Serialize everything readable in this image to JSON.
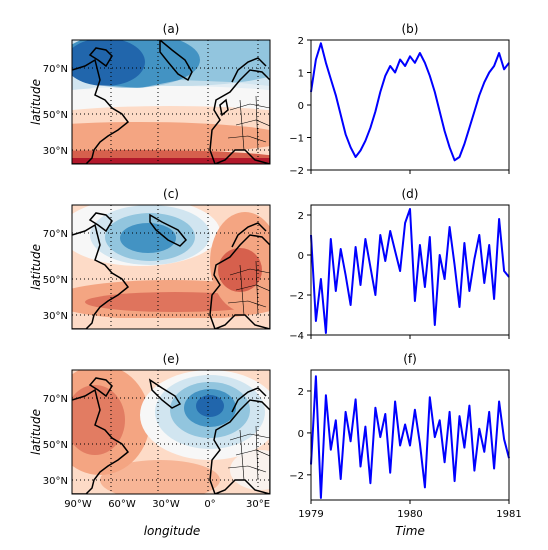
{
  "maps": [
    {
      "title": "(a)",
      "pattern": "nao_positive"
    },
    {
      "title": "(c)",
      "pattern": "east_atlantic"
    },
    {
      "title": "(e)",
      "pattern": "scandinavian_negative"
    }
  ],
  "map_axes": {
    "ylabel": "latitude",
    "xlabel": "longitude",
    "lat_ticks": [
      "70°N",
      "50°N",
      "30°N"
    ],
    "lon_ticks": [
      "90°W",
      "60°W",
      "30°W",
      "0°",
      "30°E"
    ]
  },
  "colors": {
    "series_line": "#0000ff",
    "negative_dark": "#2166ac",
    "negative_light": "#d1e5f0",
    "positive_light": "#fddbc7",
    "positive_dark": "#b2182b",
    "coast": "#000000"
  },
  "chart_data": [
    {
      "type": "line",
      "title": "(b)",
      "xlabel": "",
      "ylabel": "",
      "ylim": [
        -2,
        2
      ],
      "yticks": [
        -2,
        -1,
        0,
        1,
        2
      ],
      "xlim": [
        1979,
        1981
      ],
      "x": [
        1979.0,
        1979.05,
        1979.1,
        1979.15,
        1979.2,
        1979.25,
        1979.3,
        1979.35,
        1979.4,
        1979.45,
        1979.5,
        1979.55,
        1979.6,
        1979.65,
        1979.7,
        1979.75,
        1979.8,
        1979.85,
        1979.9,
        1979.95,
        1980.0,
        1980.05,
        1980.1,
        1980.15,
        1980.2,
        1980.25,
        1980.3,
        1980.35,
        1980.4,
        1980.45,
        1980.5,
        1980.55,
        1980.6,
        1980.65,
        1980.7,
        1980.75,
        1980.8,
        1980.85,
        1980.9,
        1980.95,
        1981.0
      ],
      "values": [
        0.4,
        1.4,
        1.9,
        1.3,
        0.8,
        0.3,
        -0.3,
        -0.9,
        -1.3,
        -1.6,
        -1.4,
        -1.1,
        -0.7,
        -0.2,
        0.4,
        0.9,
        1.2,
        1.0,
        1.4,
        1.2,
        1.5,
        1.3,
        1.6,
        1.3,
        0.9,
        0.4,
        -0.2,
        -0.8,
        -1.3,
        -1.7,
        -1.6,
        -1.2,
        -0.7,
        -0.2,
        0.3,
        0.7,
        1.0,
        1.2,
        1.6,
        1.1,
        1.3
      ]
    },
    {
      "type": "line",
      "title": "(d)",
      "xlabel": "",
      "ylabel": "",
      "ylim": [
        -4,
        2.5
      ],
      "yticks": [
        -4,
        -2,
        0,
        2
      ],
      "xlim": [
        1979,
        1981
      ],
      "x": [
        1979.0,
        1979.05,
        1979.1,
        1979.15,
        1979.2,
        1979.25,
        1979.3,
        1979.35,
        1979.4,
        1979.45,
        1979.5,
        1979.55,
        1979.6,
        1979.65,
        1979.7,
        1979.75,
        1979.8,
        1979.85,
        1979.9,
        1979.95,
        1980.0,
        1980.05,
        1980.1,
        1980.15,
        1980.2,
        1980.25,
        1980.3,
        1980.35,
        1980.4,
        1980.45,
        1980.5,
        1980.55,
        1980.6,
        1980.65,
        1980.7,
        1980.75,
        1980.8,
        1980.85,
        1980.9,
        1980.95,
        1981.0
      ],
      "values": [
        1.0,
        -3.3,
        -1.2,
        -3.9,
        0.8,
        -1.8,
        0.3,
        -1.0,
        -2.5,
        0.4,
        -1.5,
        0.8,
        -0.6,
        -2.0,
        1.0,
        -0.3,
        1.2,
        0.2,
        -0.8,
        1.6,
        2.3,
        -2.3,
        0.5,
        -1.6,
        0.9,
        -3.5,
        0.0,
        -1.2,
        1.4,
        -0.5,
        -2.6,
        0.6,
        -1.8,
        -0.2,
        1.0,
        -1.4,
        0.5,
        -2.2,
        1.8,
        -0.8,
        -1.1
      ]
    },
    {
      "type": "line",
      "title": "(f)",
      "xlabel": "Time",
      "ylabel": "",
      "ylim": [
        -3.2,
        3
      ],
      "yticks": [
        -2,
        0,
        2
      ],
      "xlim": [
        1979,
        1981
      ],
      "xticks": [
        "1979",
        "1980",
        "1981"
      ],
      "x": [
        1979.0,
        1979.05,
        1979.1,
        1979.15,
        1979.2,
        1979.25,
        1979.3,
        1979.35,
        1979.4,
        1979.45,
        1979.5,
        1979.55,
        1979.6,
        1979.65,
        1979.7,
        1979.75,
        1979.8,
        1979.85,
        1979.9,
        1979.95,
        1980.0,
        1980.05,
        1980.1,
        1980.15,
        1980.2,
        1980.25,
        1980.3,
        1980.35,
        1980.4,
        1980.45,
        1980.5,
        1980.55,
        1980.6,
        1980.65,
        1980.7,
        1980.75,
        1980.8,
        1980.85,
        1980.9,
        1980.95,
        1981.0
      ],
      "values": [
        -1.5,
        2.7,
        -3.1,
        1.8,
        -0.8,
        0.6,
        -2.2,
        1.0,
        -0.4,
        1.6,
        -1.6,
        0.3,
        -2.4,
        1.2,
        -0.2,
        0.9,
        -1.9,
        1.5,
        -0.6,
        0.4,
        -0.6,
        1.1,
        -0.5,
        -2.6,
        1.7,
        -0.2,
        0.6,
        -1.4,
        1.0,
        -2.3,
        0.8,
        -0.7,
        1.3,
        -1.8,
        0.2,
        -0.9,
        1.0,
        -1.7,
        1.5,
        -0.3,
        -1.2
      ]
    }
  ]
}
